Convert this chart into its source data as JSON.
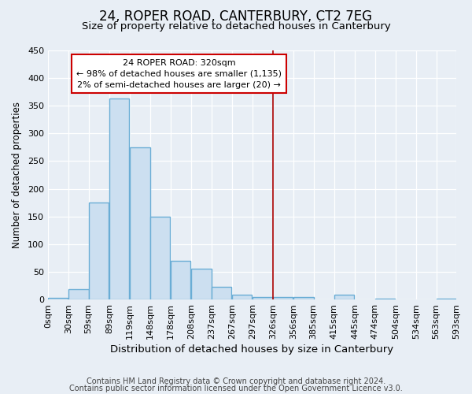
{
  "title": "24, ROPER ROAD, CANTERBURY, CT2 7EG",
  "subtitle": "Size of property relative to detached houses in Canterbury",
  "xlabel": "Distribution of detached houses by size in Canterbury",
  "ylabel": "Number of detached properties",
  "bar_left_edges": [
    0,
    30,
    59,
    89,
    119,
    148,
    178,
    208,
    237,
    267,
    297,
    326,
    356,
    385,
    415,
    445,
    474,
    504,
    534,
    563
  ],
  "bar_heights": [
    3,
    18,
    175,
    363,
    275,
    150,
    70,
    55,
    23,
    9,
    5,
    5,
    5,
    0,
    8,
    0,
    2,
    0,
    0,
    2
  ],
  "bar_color": "#ccdff0",
  "bar_edge_color": "#6aadd5",
  "bar_edge_width": 1.0,
  "ylim": [
    0,
    450
  ],
  "yticks": [
    0,
    50,
    100,
    150,
    200,
    250,
    300,
    350,
    400,
    450
  ],
  "xtick_labels": [
    "0sqm",
    "30sqm",
    "59sqm",
    "89sqm",
    "119sqm",
    "148sqm",
    "178sqm",
    "208sqm",
    "237sqm",
    "267sqm",
    "297sqm",
    "326sqm",
    "356sqm",
    "385sqm",
    "415sqm",
    "445sqm",
    "474sqm",
    "504sqm",
    "534sqm",
    "563sqm",
    "593sqm"
  ],
  "vline_x": 326,
  "vline_color": "#aa0000",
  "annotation_title": "24 ROPER ROAD: 320sqm",
  "annotation_line1": "← 98% of detached houses are smaller (1,135)",
  "annotation_line2": "2% of semi-detached houses are larger (20) →",
  "footer_line1": "Contains HM Land Registry data © Crown copyright and database right 2024.",
  "footer_line2": "Contains public sector information licensed under the Open Government Licence v3.0.",
  "background_color": "#e8eef5",
  "plot_bg_color": "#e8eef5",
  "title_fontsize": 12,
  "subtitle_fontsize": 9.5,
  "xlabel_fontsize": 9.5,
  "ylabel_fontsize": 8.5,
  "tick_fontsize": 8,
  "footer_fontsize": 7
}
